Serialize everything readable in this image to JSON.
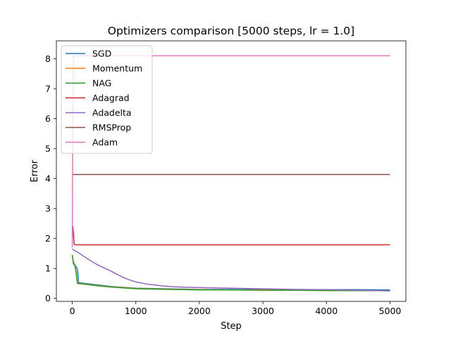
{
  "chart_data": {
    "type": "line",
    "title": "Optimizers comparison [5000 steps, lr = 1.0]",
    "xlabel": "Step",
    "ylabel": "Error",
    "xlim": [
      -250,
      5250
    ],
    "ylim": [
      -0.1,
      8.6
    ],
    "xticks": [
      0,
      1000,
      2000,
      3000,
      4000,
      5000
    ],
    "yticks": [
      0,
      1,
      2,
      3,
      4,
      5,
      6,
      7,
      8
    ],
    "grid": false,
    "legend_position": "top-left",
    "series": [
      {
        "name": "SGD",
        "color": "#1f77b4",
        "x": [
          0,
          20,
          40,
          60,
          80,
          100,
          200,
          400,
          600,
          800,
          1000,
          1500,
          2000,
          2500,
          3000,
          3500,
          4000,
          4500,
          5000
        ],
        "y": [
          1.45,
          1.2,
          1.12,
          1.05,
          0.98,
          0.52,
          0.5,
          0.45,
          0.4,
          0.37,
          0.34,
          0.32,
          0.3,
          0.3,
          0.29,
          0.29,
          0.29,
          0.29,
          0.28
        ]
      },
      {
        "name": "Momentum",
        "color": "#ff7f0e",
        "x": [
          0,
          20,
          40,
          60,
          80,
          200,
          400,
          600,
          800,
          1000,
          1500,
          2000,
          2500,
          3000,
          3500,
          4000,
          4500,
          5000
        ],
        "y": [
          1.45,
          1.15,
          1.1,
          0.9,
          0.5,
          0.48,
          0.43,
          0.39,
          0.36,
          0.33,
          0.31,
          0.29,
          0.28,
          0.28,
          0.27,
          0.27,
          0.26,
          0.26
        ]
      },
      {
        "name": "NAG",
        "color": "#2ca02c",
        "x": [
          0,
          20,
          40,
          60,
          80,
          200,
          400,
          600,
          800,
          1000,
          1500,
          2000,
          2500,
          3000,
          3500,
          4000,
          4500,
          5000
        ],
        "y": [
          1.45,
          1.15,
          1.1,
          0.85,
          0.5,
          0.47,
          0.42,
          0.38,
          0.35,
          0.32,
          0.3,
          0.28,
          0.28,
          0.27,
          0.27,
          0.26,
          0.26,
          0.26
        ]
      },
      {
        "name": "Adagrad",
        "color": "#d62728",
        "x": [
          0,
          10,
          20,
          30,
          40,
          100,
          1000,
          2000,
          3000,
          4000,
          5000
        ],
        "y": [
          2.4,
          2.4,
          2.1,
          1.8,
          1.79,
          1.79,
          1.79,
          1.79,
          1.79,
          1.79,
          1.79
        ]
      },
      {
        "name": "Adadelta",
        "color": "#9467bd",
        "x": [
          0,
          100,
          200,
          300,
          400,
          500,
          600,
          700,
          800,
          900,
          1000,
          1200,
          1400,
          1600,
          1800,
          2000,
          2500,
          3000,
          3500,
          4000,
          4500,
          5000
        ],
        "y": [
          1.65,
          1.52,
          1.38,
          1.24,
          1.12,
          1.02,
          0.92,
          0.81,
          0.7,
          0.62,
          0.55,
          0.47,
          0.42,
          0.39,
          0.37,
          0.36,
          0.34,
          0.32,
          0.3,
          0.29,
          0.27,
          0.25
        ]
      },
      {
        "name": "RMSProp",
        "color": "#8c564b",
        "x": [
          0,
          5000
        ],
        "y": [
          4.14,
          4.14
        ]
      },
      {
        "name": "Adam",
        "color": "#e377c2",
        "x": [
          0,
          5,
          10,
          15,
          20,
          5000
        ],
        "y": [
          1.7,
          4.2,
          5.6,
          7.2,
          8.1,
          8.1
        ]
      }
    ]
  }
}
